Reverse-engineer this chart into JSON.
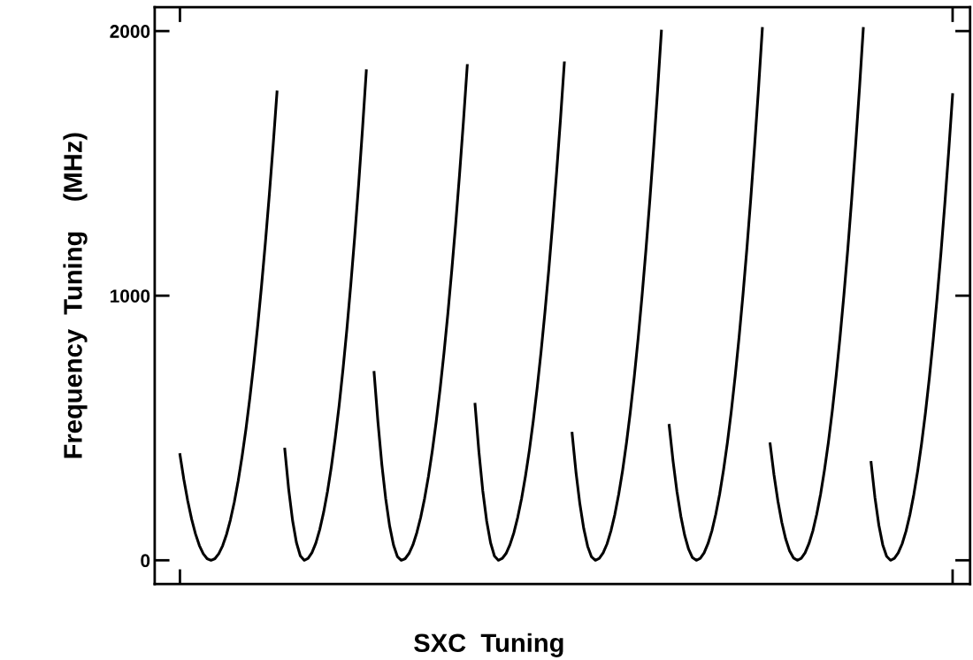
{
  "chart_data": {
    "type": "line",
    "xlabel": "SXC  Tuning",
    "ylabel": "Frequency  Tuning    (MHz)",
    "categories": [
      null,
      null,
      null,
      null,
      null,
      null,
      null,
      null,
      null,
      null,
      null,
      null,
      null,
      null,
      null,
      null,
      null,
      null,
      null,
      null,
      null,
      null,
      null,
      null,
      null,
      null,
      null,
      null,
      null,
      null,
      null,
      null,
      null,
      null,
      null,
      null,
      null,
      null,
      null,
      null,
      null,
      null,
      null,
      null,
      null,
      null,
      null,
      null,
      null,
      null,
      null,
      null,
      null,
      null,
      null,
      null,
      null,
      null,
      null,
      null,
      null,
      null,
      null,
      null,
      null,
      null,
      null,
      null,
      null,
      null,
      null,
      null,
      null,
      null,
      null,
      null,
      null,
      null,
      null,
      null,
      null,
      null,
      null,
      null,
      null,
      null,
      null,
      null,
      null,
      null,
      null,
      null,
      null,
      null,
      null,
      null,
      null,
      null,
      null,
      null,
      null,
      null,
      null,
      null,
      null,
      null,
      null,
      null,
      null,
      null,
      null,
      null,
      null,
      null,
      null,
      null,
      null,
      null,
      null,
      null,
      null,
      null,
      null,
      null,
      null,
      null,
      null,
      null,
      null,
      null,
      null,
      null,
      null,
      null,
      null,
      null,
      null,
      null,
      null,
      null,
      null,
      null,
      null,
      null,
      null,
      null,
      null,
      null,
      null,
      null,
      null,
      null,
      null,
      null,
      null,
      null,
      null,
      null,
      null,
      null,
      null,
      null,
      null,
      null,
      null,
      null,
      null,
      null,
      null,
      null,
      null,
      null,
      null,
      null,
      null,
      null,
      null,
      null,
      null,
      null,
      null,
      null,
      null,
      null,
      null,
      null,
      null,
      null,
      null,
      null,
      null,
      null,
      null,
      null,
      null,
      null,
      null,
      null,
      null,
      null,
      null,
      null,
      null,
      null,
      null,
      null,
      null,
      null,
      null,
      null
    ],
    "series": [
      {
        "color": "#000000",
        "values": [
          null,
          null,
          null,
          null,
          null,
          null,
          400,
          306,
          225,
          156,
          100,
          56,
          25,
          6,
          0,
          6,
          25,
          55,
          98,
          153,
          220,
          300,
          392,
          496,
          613,
          741,
          882,
          1035,
          1200,
          1378,
          1568,
          1770,
          null,
          420,
          269,
          151,
          67,
          17,
          0,
          7,
          29,
          65,
          116,
          181,
          260,
          354,
          463,
          585,
          723,
          874,
          1041,
          1221,
          1416,
          1626,
          1850,
          null,
          710,
          522,
          362,
          232,
          130,
          58,
          14,
          0,
          6,
          26,
          58,
          104,
          162,
          233,
          317,
          414,
          524,
          647,
          783,
          932,
          1094,
          1268,
          1456,
          1656,
          1870,
          null,
          590,
          410,
          262,
          148,
          66,
          16,
          0,
          7,
          26,
          59,
          104,
          163,
          234,
          319,
          416,
          527,
          651,
          787,
          937,
          1099,
          1275,
          1464,
          1665,
          1880,
          null,
          480,
          333,
          213,
          120,
          53,
          13,
          0,
          7,
          28,
          62,
          111,
          173,
          249,
          339,
          443,
          561,
          692,
          837,
          997,
          1170,
          1356,
          1557,
          1772,
          2000,
          null,
          510,
          375,
          260,
          167,
          94,
          42,
          10,
          0,
          7,
          28,
          63,
          111,
          174,
          250,
          341,
          445,
          563,
          696,
          842,
          1002,
          1175,
          1363,
          1565,
          1780,
          2010,
          null,
          440,
          323,
          224,
          144,
          81,
          36,
          9,
          0,
          7,
          28,
          63,
          111,
          174,
          250,
          341,
          445,
          563,
          696,
          842,
          1002,
          1175,
          1363,
          1565,
          1780,
          2010,
          null,
          370,
          237,
          133,
          59,
          15,
          0,
          7,
          28,
          62,
          110,
          172,
          248,
          337,
          440,
          557,
          688,
          832,
          990,
          1162,
          1348,
          1547,
          1760,
          null,
          null,
          null,
          null
        ]
      }
    ],
    "ylim": [
      -90,
      2090
    ],
    "yticks": [
      0,
      1000,
      2000
    ],
    "grid": false,
    "marker": "none",
    "line_style": "solid"
  }
}
